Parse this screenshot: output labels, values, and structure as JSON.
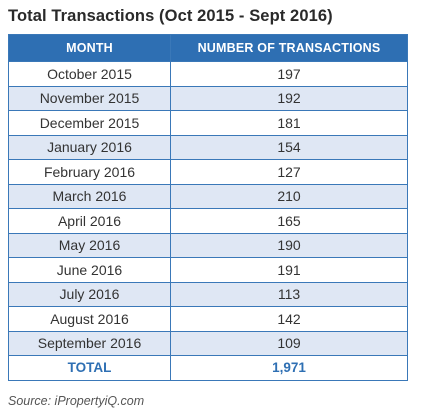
{
  "chart_data": {
    "type": "table",
    "title": "Total Transactions (Oct 2015 - Sept 2016)",
    "columns": [
      "MONTH",
      "NUMBER OF TRANSACTIONS"
    ],
    "rows": [
      {
        "month": "October 2015",
        "transactions": "197"
      },
      {
        "month": "November 2015",
        "transactions": "192"
      },
      {
        "month": "December 2015",
        "transactions": "181"
      },
      {
        "month": "January 2016",
        "transactions": "154"
      },
      {
        "month": "February 2016",
        "transactions": "127"
      },
      {
        "month": "March 2016",
        "transactions": "210"
      },
      {
        "month": "April 2016",
        "transactions": "165"
      },
      {
        "month": "May 2016",
        "transactions": "190"
      },
      {
        "month": "June 2016",
        "transactions": "191"
      },
      {
        "month": "July 2016",
        "transactions": "113"
      },
      {
        "month": "August 2016",
        "transactions": "142"
      },
      {
        "month": "September 2016",
        "transactions": "109"
      }
    ],
    "total": {
      "label": "TOTAL",
      "value": "1,971"
    },
    "source": "Source: iPropertyiQ.com"
  },
  "colors": {
    "header_bg": "#2e6fb3",
    "alt_row_bg": "#dfe7f4",
    "total_text": "#2e6fb3"
  }
}
